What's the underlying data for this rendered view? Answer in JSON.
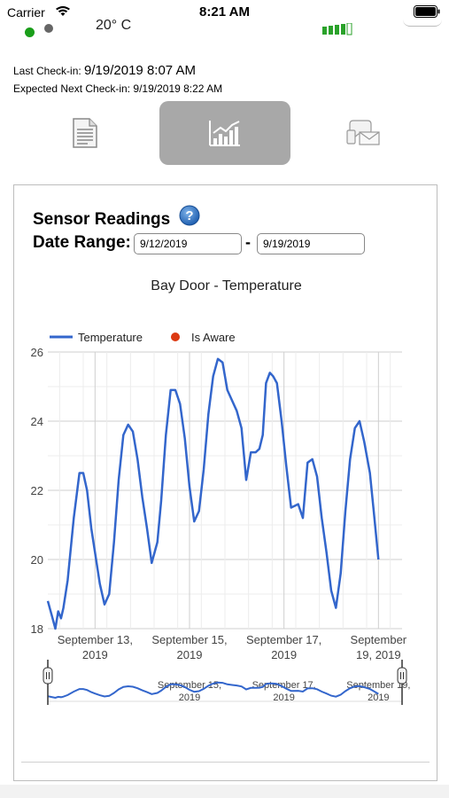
{
  "status_bar": {
    "carrier": "Carrier",
    "time": "8:21 AM"
  },
  "sensor": {
    "temperature": "20° C"
  },
  "checkin": {
    "last_label": "Last Check-in:",
    "last_value": "9/19/2019 8:07 AM",
    "expected_label": "Expected Next Check-in:",
    "expected_value": "9/19/2019 8:22 AM"
  },
  "tabs": [
    {
      "icon": "document-icon"
    },
    {
      "icon": "chart-icon",
      "active": true
    },
    {
      "icon": "notification-icon"
    }
  ],
  "panel": {
    "title": "Sensor Readings",
    "range_label": "Date Range:",
    "from": "9/12/2019",
    "to": "9/19/2019",
    "separator": "-"
  },
  "colors": {
    "line": "#3366cc",
    "aware": "#dc3912",
    "active_tab": "#a8a8a8"
  },
  "chart_data": {
    "type": "line",
    "title": "Bay Door - Temperature",
    "legend": [
      {
        "name": "Temperature",
        "marker": "line"
      },
      {
        "name": "Is Aware",
        "marker": "dot"
      }
    ],
    "legend_position": "top-left",
    "ylim": [
      18,
      26
    ],
    "yticks": [
      "18",
      "20",
      "22",
      "24",
      "26"
    ],
    "xlim": [
      12.0,
      19.5
    ],
    "xticks": [
      {
        "x": 13.0,
        "line1": "September 13,",
        "line2": "2019"
      },
      {
        "x": 15.0,
        "line1": "September 15,",
        "line2": "2019"
      },
      {
        "x": 17.0,
        "line1": "September 17,",
        "line2": "2019"
      },
      {
        "x": 19.0,
        "line1": "September",
        "line2": "19, 2019"
      }
    ],
    "navigator_labels": [
      {
        "x": 15.0,
        "line1": "September 15,",
        "line2": "2019"
      },
      {
        "x": 17.0,
        "line1": "September 17,",
        "line2": "2019"
      },
      {
        "x": 19.0,
        "line1": "September 19,",
        "line2": "2019"
      }
    ],
    "grid": true,
    "series": [
      {
        "name": "Temperature",
        "x": [
          12.0,
          12.08,
          12.16,
          12.22,
          12.28,
          12.33,
          12.42,
          12.55,
          12.67,
          12.75,
          12.83,
          12.92,
          13.0,
          13.1,
          13.2,
          13.3,
          13.4,
          13.5,
          13.6,
          13.7,
          13.8,
          13.9,
          14.0,
          14.1,
          14.2,
          14.32,
          14.4,
          14.5,
          14.6,
          14.7,
          14.8,
          14.9,
          15.0,
          15.1,
          15.2,
          15.3,
          15.4,
          15.5,
          15.6,
          15.7,
          15.8,
          15.9,
          16.0,
          16.1,
          16.2,
          16.3,
          16.4,
          16.48,
          16.55,
          16.62,
          16.7,
          16.77,
          16.85,
          16.95,
          17.05,
          17.15,
          17.3,
          17.4,
          17.5,
          17.6,
          17.7,
          17.8,
          17.9,
          18.0,
          18.1,
          18.2,
          18.3,
          18.4,
          18.5,
          18.6,
          18.7,
          18.82,
          18.9,
          19.0,
          19.1,
          19.2,
          19.35
        ],
        "values": [
          18.8,
          18.4,
          18.0,
          18.5,
          18.3,
          18.6,
          19.4,
          21.2,
          22.5,
          22.5,
          22.0,
          20.9,
          20.2,
          19.3,
          18.7,
          19.0,
          20.5,
          22.3,
          23.6,
          23.9,
          23.7,
          22.9,
          21.8,
          20.9,
          19.9,
          20.5,
          21.7,
          23.6,
          24.9,
          24.9,
          24.5,
          23.5,
          22.1,
          21.1,
          21.4,
          22.6,
          24.2,
          25.3,
          25.8,
          25.7,
          24.9,
          24.6,
          24.3,
          23.8,
          22.3,
          23.1,
          23.1,
          23.2,
          23.6,
          25.1,
          25.4,
          25.3,
          25.1,
          24.0,
          22.7,
          21.5,
          21.6,
          21.2,
          22.8,
          22.9,
          22.4,
          21.2,
          20.2,
          19.1,
          18.6,
          19.6,
          21.4,
          22.9,
          23.8,
          24.0,
          23.4,
          22.5,
          21.4,
          20.0,
          null,
          null,
          null
        ]
      },
      {
        "name": "Is Aware",
        "x": [],
        "values": []
      }
    ]
  }
}
